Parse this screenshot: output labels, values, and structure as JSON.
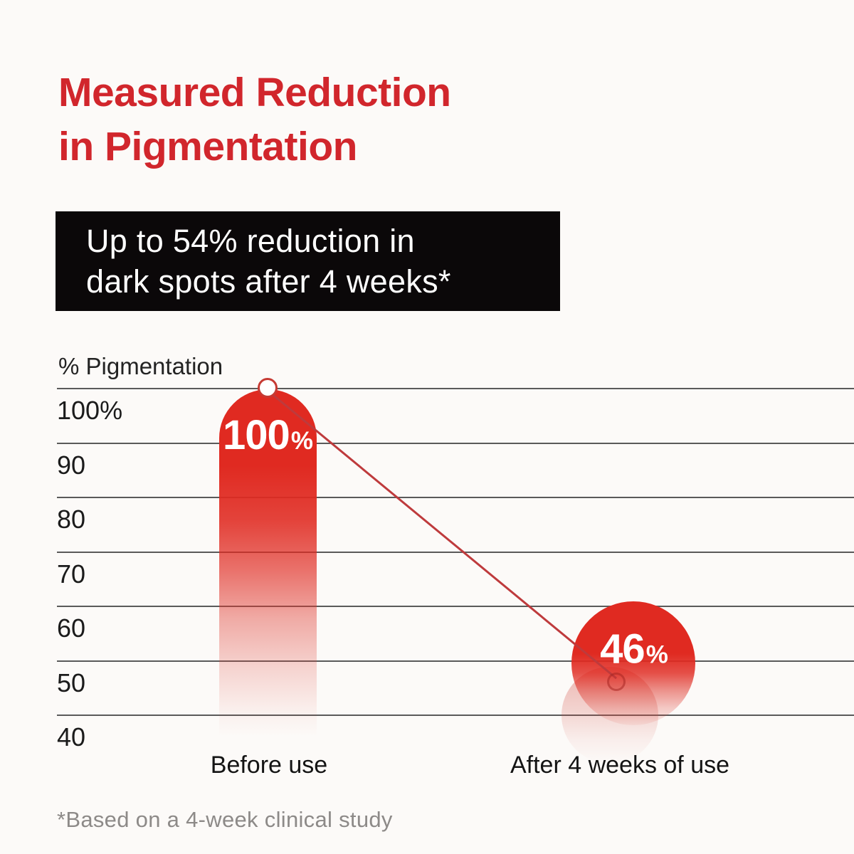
{
  "title": {
    "line1": "Measured Reduction",
    "line2": "in Pigmentation"
  },
  "callout": {
    "line1": "Up to 54% reduction in",
    "line2": "dark spots after 4 weeks*"
  },
  "chart_data": {
    "type": "bar",
    "categories": [
      "Before use",
      "After 4 weeks of use"
    ],
    "values": [
      100,
      46
    ],
    "point_labels": [
      {
        "number": "100",
        "suffix": "%"
      },
      {
        "number": "46",
        "suffix": "%"
      }
    ],
    "ylabel": "% Pigmentation",
    "ylim": [
      40,
      100
    ],
    "yticks": [
      {
        "value": 100,
        "label": "100%"
      },
      {
        "value": 90,
        "label": "90"
      },
      {
        "value": 80,
        "label": "80"
      },
      {
        "value": 70,
        "label": "70"
      },
      {
        "value": 60,
        "label": "60"
      },
      {
        "value": 50,
        "label": "50"
      },
      {
        "value": 40,
        "label": "40"
      }
    ],
    "grid": true,
    "legend": false
  },
  "footnote": "*Based on a 4-week clinical study",
  "colors": {
    "title_red": "#D1262C",
    "data_red": "#E02A21",
    "connector_red": "#BE3A3C",
    "callout_bg": "#0B0809",
    "callout_text": "#FFFFFF",
    "background": "#FCFAF8",
    "gridline": "#5A5A5A",
    "tick_text": "#1B1B1B",
    "footnote_gray": "#8D8A88"
  }
}
